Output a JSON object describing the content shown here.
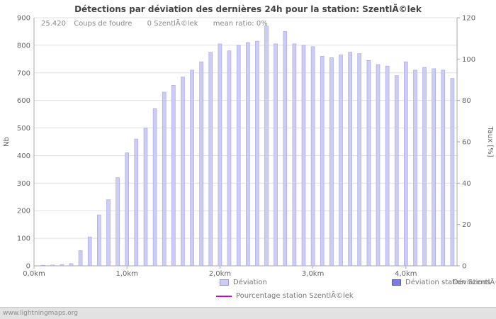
{
  "page": {
    "title": "Détections par déviation des dernières 24h pour la station: SzentlÃ©lek",
    "watermark": "www.lightningmaps.org"
  },
  "stats": {
    "strikes_count": "25.420",
    "strikes_label": "Coups de foudre",
    "station_count": "0 SzentlÃ©lek",
    "mean_ratio": "mean ratio: 0%"
  },
  "legend": {
    "deviation": "Déviation",
    "station_deviation": "Déviation station SzentlÃ©lek",
    "station_percentage": "Pourcentage station SzentlÃ©lek"
  },
  "axes": {
    "x_label": "Déviations",
    "y_left_label": "Nb",
    "y_right_label": "Taux [%]"
  },
  "colors": {
    "bar_fill": "#ccccf4",
    "bar_border": "#a3a3e4",
    "station_bar_fill": "#7b7be1",
    "percentage_line": "#cc00cc",
    "grid": "#e0e0e0",
    "axis": "#aaaaaa",
    "tick_text": "#666666",
    "label_text": "#777777"
  },
  "chart_data": {
    "type": "bar",
    "title": "Détections par déviation des dernières 24h pour la station: SzentlÃ©lek",
    "xlabel": "Déviations",
    "ylabel_left": "Nb",
    "ylabel_right": "Taux [%]",
    "ylim_left": [
      0,
      900
    ],
    "ylim_right": [
      0,
      120
    ],
    "y_grid_step_left": 100,
    "y_tick_step_right": 20,
    "grid": true,
    "legend_position": "bottom",
    "x_unit": "km",
    "x_ticks": [
      {
        "km": 0,
        "label": "0,0km"
      },
      {
        "km": 1,
        "label": "1,0km"
      },
      {
        "km": 2,
        "label": "2,0km"
      },
      {
        "km": 3,
        "label": "3,0km"
      },
      {
        "km": 4,
        "label": "4,0km"
      }
    ],
    "x_km": [
      0.1,
      0.2,
      0.3,
      0.4,
      0.5,
      0.6,
      0.7,
      0.8,
      0.9,
      1.0,
      1.1,
      1.2,
      1.3,
      1.4,
      1.5,
      1.6,
      1.7,
      1.8,
      1.9,
      2.0,
      2.1,
      2.2,
      2.3,
      2.4,
      2.5,
      2.6,
      2.7,
      2.8,
      2.9,
      3.0,
      3.1,
      3.2,
      3.3,
      3.4,
      3.5,
      3.6,
      3.7,
      3.8,
      3.9,
      4.0,
      4.1,
      4.2,
      4.3,
      4.4,
      4.5
    ],
    "series": [
      {
        "name": "Déviation",
        "color": "#ccccf4",
        "values": [
          2,
          3,
          5,
          8,
          55,
          105,
          185,
          240,
          320,
          410,
          460,
          500,
          570,
          630,
          655,
          685,
          710,
          740,
          775,
          805,
          780,
          800,
          810,
          815,
          870,
          805,
          850,
          805,
          800,
          795,
          760,
          755,
          765,
          775,
          770,
          745,
          730,
          725,
          690,
          740,
          710,
          720,
          715,
          710,
          680
        ]
      },
      {
        "name": "Déviation station SzentlÃ©lek",
        "color": "#7b7be1",
        "values": [],
        "note": "0 detections for station, no bars visible"
      }
    ],
    "line": {
      "name": "Pourcentage station SzentlÃ©lek",
      "color": "#cc00cc",
      "values": [],
      "note": "mean ratio 0%, line not visible"
    }
  }
}
